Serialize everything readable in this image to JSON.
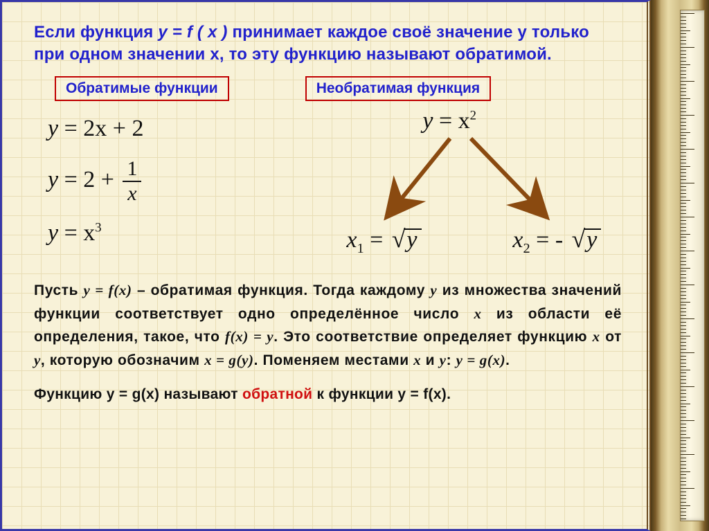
{
  "colors": {
    "page_bg": "#f8f2d8",
    "grid_line": "#e8ddb5",
    "outer_border": "#3838a8",
    "heading_text": "#2222cc",
    "label_border": "#c00000",
    "formula_text": "#111111",
    "arrow_color": "#8a4a10",
    "highlight": "#d01010",
    "side_wood": "#7a5b28",
    "ruler_bg": "#fdf8e4"
  },
  "typography": {
    "heading_fontsize": 24,
    "label_fontsize": 21,
    "formula_fontsize": 34,
    "body_fontsize": 21,
    "formula_family": "Times New Roman"
  },
  "heading": {
    "prefix": "Если функция ",
    "fn": "y = f ( x )",
    "rest": " принимает каждое своё значение y только при одном значении x, то эту функцию называют обратимой."
  },
  "labels": {
    "invertible": "Обратимые функции",
    "noninvertible": "Необратимая функция"
  },
  "left_formulas": {
    "eq1_lhs": "y ",
    "eq1_rhs": "= 2x + 2",
    "eq2_lhs": "y ",
    "eq2_pre": "= 2 + ",
    "eq2_frac_num": "1",
    "eq2_frac_den": "x",
    "eq3_lhs": "y ",
    "eq3_rhs": "= x",
    "eq3_exp": "3"
  },
  "right_formulas": {
    "top_lhs": "y ",
    "top_rhs": "= x",
    "top_exp": "2",
    "sol1_lhs": "x",
    "sol1_sub": "1",
    "sol1_eq": " = ",
    "sol1_rad": "y",
    "sol2_lhs": "x",
    "sol2_sub": "2",
    "sol2_eq": " = - ",
    "sol2_rad": "y"
  },
  "body": {
    "p1_a": "Пусть ",
    "p1_fn1": "y = f(x)",
    "p1_b": " – обратимая функция. Тогда каждому ",
    "p1_y": "y",
    "p1_c": " из множества значений функции соответствует одно определённое число ",
    "p1_x": "x",
    "p1_d": " из области её определения, такое, что ",
    "p1_fn2": "f(x) = y",
    "p1_e": ". Это соответствие определяет функцию ",
    "p1_x2": "x",
    "p1_f": " от ",
    "p1_y2": "y",
    "p1_g": ", которую обозначим ",
    "p1_fn3": "x = g(y)",
    "p1_h": ". Поменяем местами ",
    "p1_x3": "x",
    "p1_i": " и ",
    "p1_y3": "y",
    "p1_j": ":   ",
    "p1_fn4": "y = g(x)",
    "p1_k": "."
  },
  "conclusion": {
    "a": "Функцию ",
    "fn1": "y = g(x)",
    "b": " называют ",
    "hl": "обратной",
    "c": " к функции ",
    "fn2": "y = f(x)",
    "d": "."
  }
}
